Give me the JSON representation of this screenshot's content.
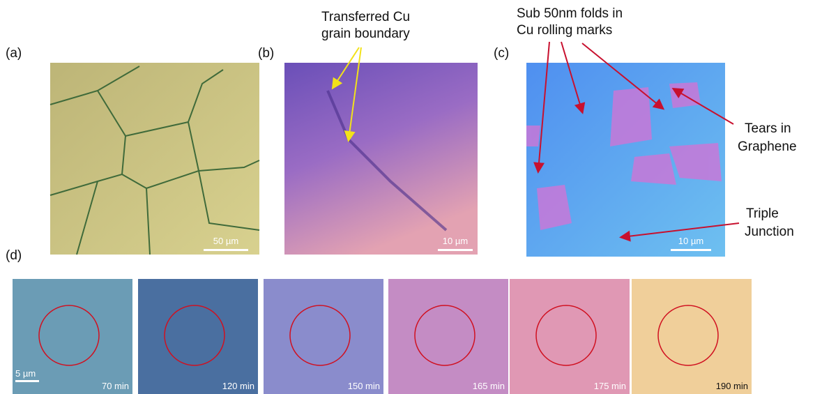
{
  "panels": [
    {
      "label": "(a)",
      "scale_bar": "50 µm"
    },
    {
      "label": "(b)",
      "scale_bar": "10 µm"
    },
    {
      "label": "(c)",
      "scale_bar": "10 µm"
    }
  ],
  "annotations": [
    {
      "lines": [
        "Transferred Cu",
        "grain boundary"
      ]
    },
    {
      "lines": [
        "Sub 50nm folds in",
        "Cu rolling marks"
      ]
    },
    {
      "lines": [
        "Tears in",
        "Graphene"
      ]
    },
    {
      "lines": [
        "Triple",
        "Junction"
      ]
    }
  ],
  "time_series": {
    "label": "(d)",
    "scale_bar": "5 µm",
    "frames": [
      "70 min",
      "120 min",
      "150 min",
      "165 min",
      "175 min",
      "190 min"
    ]
  }
}
